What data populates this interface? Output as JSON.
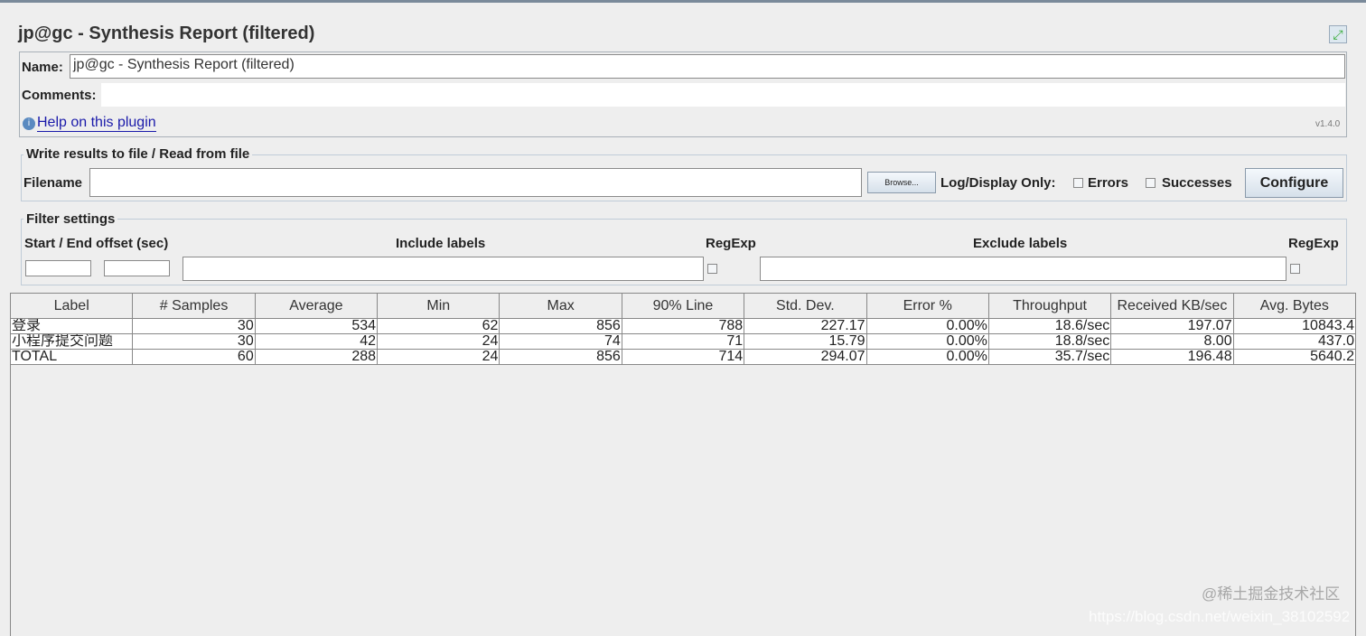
{
  "title": "jp@gc - Synthesis Report (filtered)",
  "name_label": "Name:",
  "name_value": "jp@gc - Synthesis Report (filtered)",
  "comments_label": "Comments:",
  "comments_value": "",
  "help_link": "Help on this plugin",
  "version": "v1.4.0",
  "file_group": {
    "title": "Write results to file / Read from file",
    "filename_label": "Filename",
    "filename_value": "",
    "browse": "Browse...",
    "log_display": "Log/Display Only:",
    "errors": "Errors",
    "successes": "Successes",
    "configure": "Configure"
  },
  "filter": {
    "title": "Filter settings",
    "offset_label": "Start / End offset (sec)",
    "include_label": "Include labels",
    "regexp1": "RegExp",
    "exclude_label": "Exclude labels",
    "regexp2": "RegExp"
  },
  "table": {
    "headers": [
      "Label",
      "# Samples",
      "Average",
      "Min",
      "Max",
      "90% Line",
      "Std. Dev.",
      "Error %",
      "Throughput",
      "Received KB/sec",
      "Avg. Bytes"
    ],
    "rows": [
      [
        "登录",
        "30",
        "534",
        "62",
        "856",
        "788",
        "227.17",
        "0.00%",
        "18.6/sec",
        "197.07",
        "10843.4"
      ],
      [
        "小程序提交问题",
        "30",
        "42",
        "24",
        "74",
        "71",
        "15.79",
        "0.00%",
        "18.8/sec",
        "8.00",
        "437.0"
      ],
      [
        "TOTAL",
        "60",
        "288",
        "24",
        "856",
        "714",
        "294.07",
        "0.00%",
        "35.7/sec",
        "196.48",
        "5640.2"
      ]
    ]
  },
  "watermark": {
    "line1": "@稀土掘金技术社区",
    "line2": "https://blog.csdn.net/weixin_38102592"
  }
}
